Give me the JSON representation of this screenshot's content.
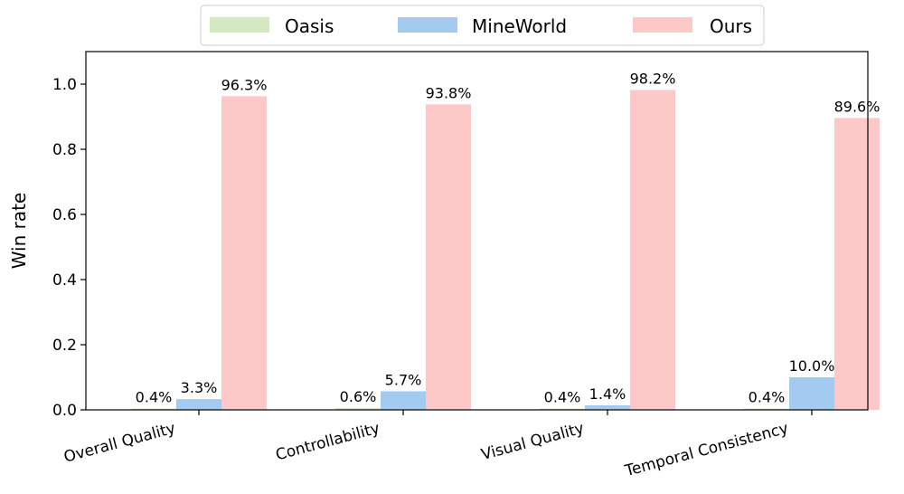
{
  "chart_data": {
    "type": "bar",
    "categories": [
      "Overall Quality",
      "Controllability",
      "Visual Quality",
      "Temporal Consistency"
    ],
    "series": [
      {
        "name": "Oasis",
        "color": "#d4e8c2",
        "values": [
          0.004,
          0.006,
          0.004,
          0.004
        ],
        "labels": [
          "0.4%",
          "0.6%",
          "0.4%",
          "0.4%"
        ]
      },
      {
        "name": "MineWorld",
        "color": "#a3cbf0",
        "values": [
          0.033,
          0.057,
          0.014,
          0.1
        ],
        "labels": [
          "3.3%",
          "5.7%",
          "1.4%",
          "10.0%"
        ]
      },
      {
        "name": "Ours",
        "color": "#fdc8c8",
        "values": [
          0.963,
          0.938,
          0.982,
          0.896
        ],
        "labels": [
          "96.3%",
          "93.8%",
          "98.2%",
          "89.6%"
        ]
      }
    ],
    "ylabel": "Win rate",
    "ylim": [
      0,
      1.1
    ],
    "yticks": [
      "0.0",
      "0.2",
      "0.4",
      "0.6",
      "0.8",
      "1.0"
    ],
    "ytick_values": [
      0,
      0.2,
      0.4,
      0.6,
      0.8,
      1.0
    ],
    "grid": false,
    "legend_position": "top-center"
  }
}
